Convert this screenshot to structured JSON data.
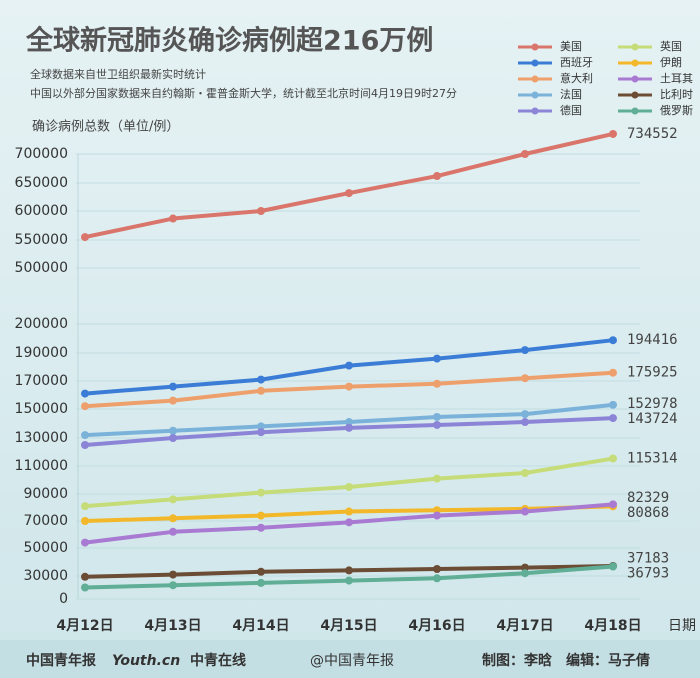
{
  "chart_data": {
    "type": "line",
    "title": "全球新冠肺炎确诊病例超216万例",
    "subtitle": [
      "全球数据来自世卫组织最新实时统计",
      "中国以外部分国家数据来自约翰斯・霍普金斯大学，统计截至北京时间4月19日9时27分"
    ],
    "y_label": "确诊病例总数（单位/例）",
    "x_label": "日期",
    "categories": [
      "4月12日",
      "4月13日",
      "4月14日",
      "4月15日",
      "4月16日",
      "4月17日",
      "4月18日"
    ],
    "series": [
      {
        "name": "美国",
        "color": "#d9756b",
        "values": [
          555000,
          587000,
          600000,
          632000,
          662000,
          700000,
          734552
        ]
      },
      {
        "name": "英国",
        "color": "#c5dc78",
        "values": [
          81000,
          86000,
          91000,
          95000,
          101000,
          105000,
          115314
        ]
      },
      {
        "name": "西班牙",
        "color": "#3b7dd6",
        "values": [
          161000,
          166000,
          171000,
          181000,
          186000,
          191000,
          194416
        ]
      },
      {
        "name": "伊朗",
        "color": "#f2b82a",
        "values": [
          70000,
          72000,
          74000,
          77000,
          78000,
          79000,
          80868
        ]
      },
      {
        "name": "意大利",
        "color": "#eea06c",
        "values": [
          152000,
          156000,
          163000,
          166000,
          168000,
          172000,
          175925
        ]
      },
      {
        "name": "土耳其",
        "color": "#a97ad2",
        "values": [
          54000,
          62000,
          65000,
          69000,
          74000,
          77000,
          82329
        ]
      },
      {
        "name": "法国",
        "color": "#7bb2da",
        "values": [
          132000,
          135000,
          138000,
          141000,
          144500,
          146500,
          152978
        ]
      },
      {
        "name": "比利时",
        "color": "#6b4c35",
        "values": [
          29000,
          31000,
          33000,
          34000,
          35000,
          36000,
          37183
        ]
      },
      {
        "name": "德国",
        "color": "#8c84d6",
        "values": [
          125000,
          130000,
          134000,
          137000,
          139000,
          141000,
          143724
        ]
      },
      {
        "name": "俄罗斯",
        "color": "#5fae95",
        "values": [
          15000,
          18000,
          21000,
          24000,
          27000,
          32000,
          36793
        ]
      }
    ],
    "ylim": [
      0,
      700000
    ],
    "yticks": [
      0,
      30000,
      50000,
      70000,
      90000,
      110000,
      130000,
      150000,
      170000,
      190000,
      200000,
      500000,
      550000,
      600000,
      650000,
      700000
    ],
    "grid": true,
    "legend": "top-right",
    "footer": {
      "logos": [
        "中国青年报",
        "Youth.cn",
        "中青在线"
      ],
      "source": "@中国青年报",
      "credits": "制图：李晗　编辑：马子倩"
    }
  }
}
